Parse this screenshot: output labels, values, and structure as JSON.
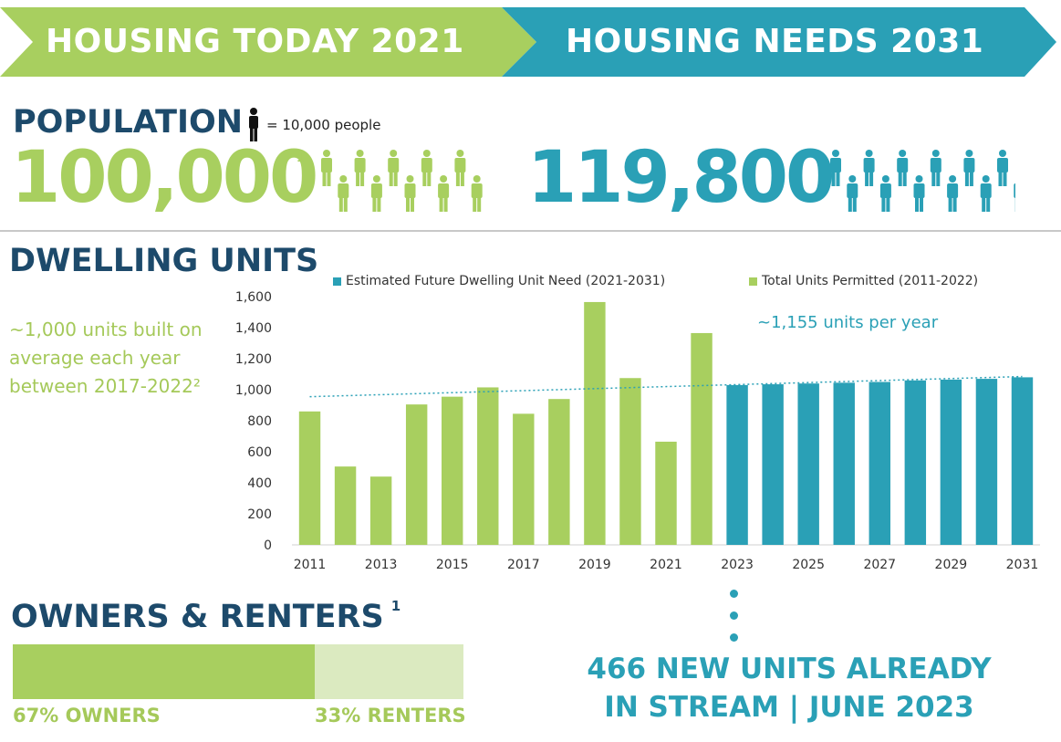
{
  "banner": {
    "left_title": "HOUSING TODAY 2021",
    "right_title": "HOUSING NEEDS 2031"
  },
  "population": {
    "heading": "POPULATION",
    "scale_label": "= 10,000 people",
    "icon": "person-icon",
    "today_value": "100,000",
    "today_footnote": "1",
    "today_person_count": 10,
    "future_value": "119,800",
    "future_person_count": 12
  },
  "dwelling": {
    "heading": "DWELLING UNITS",
    "side_note": "~1,000 units built on average each year between 2017-2022²",
    "rate_note": "~1,155 units per year"
  },
  "owners": {
    "heading": "OWNERS & RENTERS",
    "footnote": "1",
    "owner_label": "67% OWNERS",
    "renter_label": "33% RENTERS",
    "owner_share": 0.67,
    "renter_share": 0.33
  },
  "stream": {
    "line1": "466 NEW UNITS ALREADY",
    "line2": "IN STREAM | JUNE 2023"
  },
  "colors": {
    "green": "#a8cf5f",
    "green_text": "#a5c95a",
    "teal": "#2aa0b6",
    "navy": "#1d4a6b",
    "light_green": "#dbeac0"
  },
  "chart_data": {
    "type": "bar",
    "categories": [
      "2011",
      "2012",
      "2013",
      "2014",
      "2015",
      "2016",
      "2017",
      "2018",
      "2019",
      "2020",
      "2021",
      "2022",
      "2023",
      "2024",
      "2025",
      "2026",
      "2027",
      "2028",
      "2029",
      "2030",
      "2031"
    ],
    "x_tick_labels": [
      "2011",
      "2013",
      "2015",
      "2017",
      "2019",
      "2021",
      "2023",
      "2025",
      "2027",
      "2029",
      "2031"
    ],
    "series": [
      {
        "name": "Total Units Permitted (2011-2022)",
        "color": "#a8cf5f",
        "values": [
          860,
          505,
          440,
          905,
          955,
          1015,
          845,
          940,
          1565,
          1075,
          665,
          1365,
          null,
          null,
          null,
          null,
          null,
          null,
          null,
          null,
          null
        ]
      },
      {
        "name": "Estimated Future Dwelling Unit Need (2021-2031)",
        "color": "#2aa0b6",
        "values": [
          null,
          null,
          null,
          null,
          null,
          null,
          null,
          null,
          null,
          null,
          null,
          null,
          1030,
          1035,
          1040,
          1045,
          1050,
          1060,
          1065,
          1070,
          1080
        ]
      }
    ],
    "trendline": {
      "start": 955,
      "end": 1085
    },
    "yticks": [
      0,
      200,
      400,
      600,
      800,
      1000,
      1200,
      1400,
      1600
    ],
    "ytick_labels": [
      "0",
      "200",
      "400",
      "600",
      "800",
      "1,000",
      "1,200",
      "1,400",
      "1,600"
    ],
    "ylim": [
      0,
      1600
    ],
    "legend_position": "top",
    "grid": false
  }
}
